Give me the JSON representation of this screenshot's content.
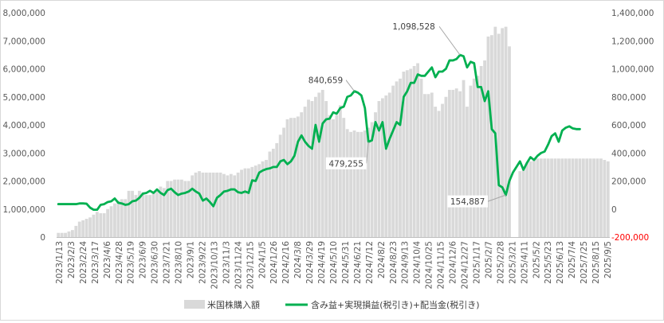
{
  "chart_data": {
    "type": "bar+line",
    "left_axis": {
      "ylim": [
        0,
        8000000
      ],
      "ticks": [
        "0",
        "1,000,000",
        "2,000,000",
        "3,000,000",
        "4,000,000",
        "5,000,000",
        "6,000,000",
        "7,000,000",
        "8,000,000"
      ]
    },
    "right_axis": {
      "ylim": [
        -200000,
        1400000
      ],
      "ticks": [
        "-200,000",
        "0",
        "200,000",
        "400,000",
        "600,000",
        "800,000",
        "1,000,000",
        "1,200,000",
        "1,400,000"
      ],
      "negative_color": "#ff0000"
    },
    "x_tick_labels": [
      "2023/1/13",
      "2023/2/3",
      "2023/2/24",
      "2023/3/17",
      "2023/4/6",
      "2023/4/28",
      "2023/5/19",
      "2023/6/9",
      "2023/6/30",
      "2023/7/21",
      "2023/8/10",
      "2023/9/1",
      "2023/9/22",
      "2023/10/13",
      "2023/11/3",
      "2023/11/24",
      "2023/12/15",
      "2024/1/5",
      "2024/1/26",
      "2024/2/16",
      "2024/3/8",
      "2024/3/29",
      "2024/4/19",
      "2024/5/10",
      "2024/5/31",
      "2024/6/21",
      "2024/7/12",
      "2024/8/2",
      "2024/8/23",
      "2024/9/13",
      "2024/10/4",
      "2024/10/25",
      "2024/11/15",
      "2024/12/6",
      "2024/12/27",
      "2025/1/17",
      "2025/2/7",
      "2025/2/28",
      "2025/3/21",
      "2025/4/11",
      "2025/5/2",
      "2025/5/23",
      "2025/6/13",
      "2025/7/4",
      "2025/7/25",
      "2025/8/15",
      "2025/9/5"
    ],
    "series": [
      {
        "name": "米国株購入額",
        "type": "bar",
        "axis": "left",
        "color": "#d9d9d9",
        "values": [
          150000,
          150000,
          150000,
          200000,
          250000,
          400000,
          550000,
          600000,
          650000,
          700000,
          800000,
          900000,
          850000,
          850000,
          1000000,
          1100000,
          1200000,
          1300000,
          1350000,
          1350000,
          1650000,
          1650000,
          1500000,
          1650000,
          1600000,
          1500000,
          1500000,
          1600000,
          1700000,
          1800000,
          1750000,
          2000000,
          2000000,
          2050000,
          2050000,
          2050000,
          2000000,
          2000000,
          2200000,
          2300000,
          2350000,
          2300000,
          2300000,
          2300000,
          2300000,
          2300000,
          2300000,
          2250000,
          2200000,
          2250000,
          2200000,
          2300000,
          2400000,
          2450000,
          2450000,
          2500000,
          2550000,
          2600000,
          2700000,
          2750000,
          3050000,
          3150000,
          3350000,
          3650000,
          3900000,
          4200000,
          4250000,
          4250000,
          4300000,
          4450000,
          4650000,
          4900000,
          4850000,
          5000000,
          5150000,
          5250000,
          4850000,
          4350000,
          4200000,
          4350000,
          4700000,
          4250000,
          3850000,
          3750000,
          3800000,
          3750000,
          3750000,
          3800000,
          3900000,
          4100000,
          4450000,
          4850000,
          4950000,
          5050000,
          5150000,
          5400000,
          5550000,
          5650000,
          5900000,
          5950000,
          6000000,
          6100000,
          6200000,
          5650000,
          5100000,
          5100000,
          5150000,
          4650000,
          4500000,
          4750000,
          5000000,
          5250000,
          5250000,
          5300000,
          5200000,
          5600000,
          4650000,
          5400000,
          5650000,
          5750000,
          6100000,
          6300000,
          7150000,
          7200000,
          7500000,
          7250000,
          7450000,
          7500000,
          6800000,
          0,
          0,
          2350000,
          2500000,
          2650000,
          2700000,
          2750000,
          2800000,
          2800000,
          2800000,
          2800000,
          2800000,
          2800000,
          2800000,
          2800000,
          2800000,
          2800000,
          2800000,
          2800000,
          2800000,
          2800000,
          2800000,
          2800000,
          2800000,
          2800000,
          2800000,
          2750000,
          2700000
        ]
      },
      {
        "name": "含み益+実現損益(税引き)+配当金(税引き)",
        "type": "line",
        "axis": "right",
        "color": "#00b050",
        "values": [
          35000,
          35000,
          35000,
          35000,
          35000,
          35000,
          40000,
          40000,
          38000,
          10000,
          -5000,
          -5000,
          30000,
          35000,
          50000,
          55000,
          75000,
          45000,
          40000,
          30000,
          35000,
          55000,
          60000,
          80000,
          110000,
          115000,
          130000,
          115000,
          140000,
          115000,
          100000,
          135000,
          145000,
          120000,
          100000,
          110000,
          115000,
          125000,
          145000,
          125000,
          110000,
          60000,
          75000,
          50000,
          20000,
          80000,
          100000,
          125000,
          130000,
          140000,
          140000,
          120000,
          115000,
          125000,
          115000,
          205000,
          200000,
          260000,
          275000,
          285000,
          290000,
          300000,
          300000,
          340000,
          350000,
          320000,
          340000,
          380000,
          480000,
          525000,
          480000,
          450000,
          430000,
          600000,
          480000,
          610000,
          640000,
          645000,
          690000,
          680000,
          720000,
          730000,
          800000,
          810000,
          840659,
          830000,
          810000,
          720000,
          479255,
          490000,
          620000,
          560000,
          620000,
          430000,
          500000,
          560000,
          620000,
          600000,
          800000,
          840000,
          900000,
          900000,
          960000,
          950000,
          950000,
          980000,
          1010000,
          940000,
          980000,
          980000,
          1000000,
          1060000,
          1060000,
          1070000,
          1098528,
          1090000,
          1010000,
          1050000,
          1040000,
          870000,
          870000,
          770000,
          840000,
          570000,
          540000,
          170000,
          154887,
          100000,
          200000,
          260000,
          300000,
          340000,
          280000,
          330000,
          370000,
          350000,
          380000,
          400000,
          410000,
          460000,
          520000,
          540000,
          480000,
          560000,
          580000,
          590000,
          575000,
          570000,
          570000
        ]
      }
    ],
    "annotations": [
      {
        "text": "1,098,528",
        "index": 114
      },
      {
        "text": "840,659",
        "index": 84
      },
      {
        "text": "479,255",
        "index": 88
      },
      {
        "text": "154,887",
        "index": 127
      }
    ],
    "legend": {
      "placement": "bottom",
      "items": [
        {
          "label": "米国株購入額",
          "kind": "bar",
          "color": "#d9d9d9"
        },
        {
          "label": "含み益+実現損益(税引き)+配当金(税引き)",
          "kind": "line",
          "color": "#00b050"
        }
      ]
    },
    "grid": false
  }
}
